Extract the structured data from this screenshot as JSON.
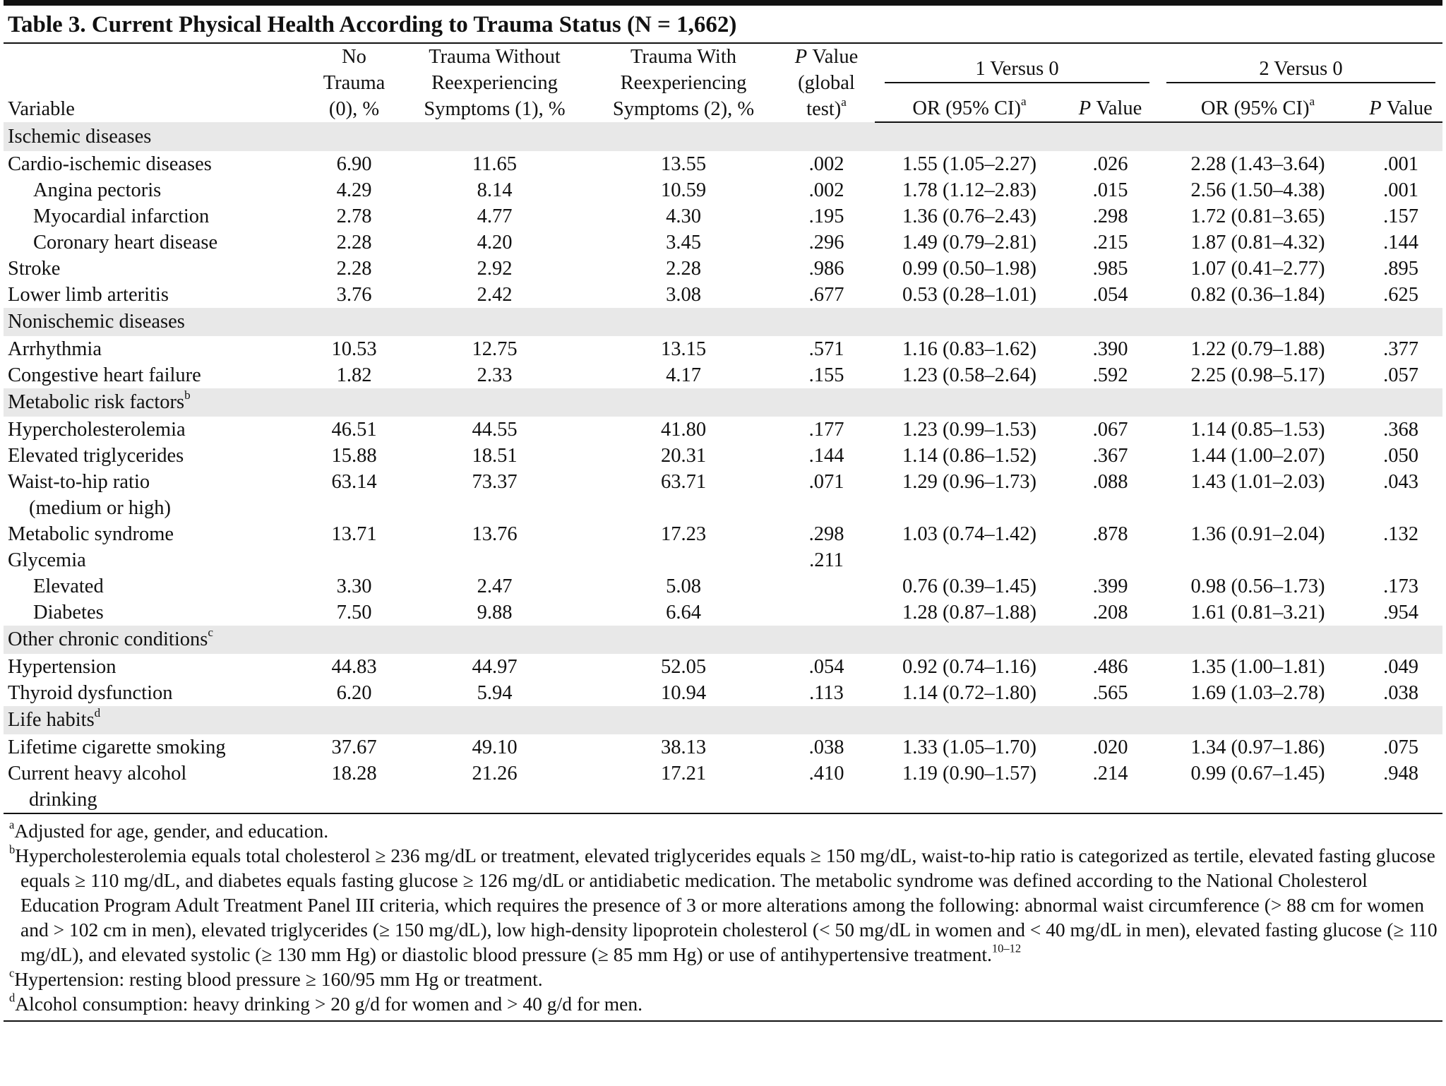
{
  "title": "Table 3. Current Physical Health According to Trauma Status (N = 1,662)",
  "header": {
    "variable": "Variable",
    "columns": [
      {
        "lines": [
          "No",
          "Trauma",
          "(0), %"
        ]
      },
      {
        "lines": [
          "Trauma Without",
          "Reexperiencing",
          "Symptoms (1), %"
        ]
      },
      {
        "lines": [
          "Trauma With",
          "Reexperiencing",
          "Symptoms (2), %"
        ]
      },
      {
        "italic": "P",
        "lines": [
          "Value",
          "(global",
          "test)"
        ],
        "note": "a"
      }
    ],
    "groups": [
      {
        "title": "1 Versus 0",
        "or": "OR (95% CI)",
        "or_note": "a",
        "p_italic": "P",
        "p": "Value"
      },
      {
        "title": "2 Versus 0",
        "or": "OR (95% CI)",
        "or_note": "a",
        "p_italic": "P",
        "p": "Value"
      }
    ]
  },
  "sections": [
    {
      "title": "Ischemic diseases",
      "rows": [
        {
          "lines": [
            "Cardio-ischemic diseases"
          ],
          "values": [
            "6.90",
            "11.65",
            "13.55",
            ".002",
            "1.55 (1.05–2.27)",
            ".026",
            "2.28 (1.43–3.64)",
            ".001"
          ]
        },
        {
          "lines": [
            "Angina pectoris"
          ],
          "indent": true,
          "values": [
            "4.29",
            "8.14",
            "10.59",
            ".002",
            "1.78 (1.12–2.83)",
            ".015",
            "2.56 (1.50–4.38)",
            ".001"
          ]
        },
        {
          "lines": [
            "Myocardial infarction"
          ],
          "indent": true,
          "values": [
            "2.78",
            "4.77",
            "4.30",
            ".195",
            "1.36 (0.76–2.43)",
            ".298",
            "1.72 (0.81–3.65)",
            ".157"
          ]
        },
        {
          "lines": [
            "Coronary heart disease"
          ],
          "indent": true,
          "values": [
            "2.28",
            "4.20",
            "3.45",
            ".296",
            "1.49 (0.79–2.81)",
            ".215",
            "1.87 (0.81–4.32)",
            ".144"
          ]
        },
        {
          "lines": [
            "Stroke"
          ],
          "values": [
            "2.28",
            "2.92",
            "2.28",
            ".986",
            "0.99 (0.50–1.98)",
            ".985",
            "1.07 (0.41–2.77)",
            ".895"
          ]
        },
        {
          "lines": [
            "Lower limb arteritis"
          ],
          "values": [
            "3.76",
            "2.42",
            "3.08",
            ".677",
            "0.53 (0.28–1.01)",
            ".054",
            "0.82 (0.36–1.84)",
            ".625"
          ]
        }
      ]
    },
    {
      "title": "Nonischemic diseases",
      "rows": [
        {
          "lines": [
            "Arrhythmia"
          ],
          "values": [
            "10.53",
            "12.75",
            "13.15",
            ".571",
            "1.16 (0.83–1.62)",
            ".390",
            "1.22 (0.79–1.88)",
            ".377"
          ]
        },
        {
          "lines": [
            "Congestive heart failure"
          ],
          "values": [
            "1.82",
            "2.33",
            "4.17",
            ".155",
            "1.23 (0.58–2.64)",
            ".592",
            "2.25 (0.98–5.17)",
            ".057"
          ]
        }
      ]
    },
    {
      "title": "Metabolic risk factors",
      "note": "b",
      "rows": [
        {
          "lines": [
            "Hypercholesterolemia"
          ],
          "values": [
            "46.51",
            "44.55",
            "41.80",
            ".177",
            "1.23 (0.99–1.53)",
            ".067",
            "1.14 (0.85–1.53)",
            ".368"
          ]
        },
        {
          "lines": [
            "Elevated triglycerides"
          ],
          "values": [
            "15.88",
            "18.51",
            "20.31",
            ".144",
            "1.14 (0.86–1.52)",
            ".367",
            "1.44 (1.00–2.07)",
            ".050"
          ]
        },
        {
          "lines": [
            "Waist-to-hip ratio",
            "(medium or high)"
          ],
          "values": [
            "63.14",
            "73.37",
            "63.71",
            ".071",
            "1.29 (0.96–1.73)",
            ".088",
            "1.43 (1.01–2.03)",
            ".043"
          ]
        },
        {
          "lines": [
            "Metabolic syndrome"
          ],
          "values": [
            "13.71",
            "13.76",
            "17.23",
            ".298",
            "1.03 (0.74–1.42)",
            ".878",
            "1.36 (0.91–2.04)",
            ".132"
          ]
        },
        {
          "lines": [
            "Glycemia"
          ],
          "values": [
            null,
            null,
            null,
            ".211",
            null,
            null,
            null,
            null
          ]
        },
        {
          "lines": [
            "Elevated"
          ],
          "indent": true,
          "values": [
            "3.30",
            "2.47",
            "5.08",
            null,
            "0.76 (0.39–1.45)",
            ".399",
            "0.98 (0.56–1.73)",
            ".173"
          ]
        },
        {
          "lines": [
            "Diabetes"
          ],
          "indent": true,
          "values": [
            "7.50",
            "9.88",
            "6.64",
            null,
            "1.28 (0.87–1.88)",
            ".208",
            "1.61 (0.81–3.21)",
            ".954"
          ]
        }
      ]
    },
    {
      "title": "Other chronic conditions",
      "note": "c",
      "rows": [
        {
          "lines": [
            "Hypertension"
          ],
          "values": [
            "44.83",
            "44.97",
            "52.05",
            ".054",
            "0.92 (0.74–1.16)",
            ".486",
            "1.35 (1.00–1.81)",
            ".049"
          ]
        },
        {
          "lines": [
            "Thyroid dysfunction"
          ],
          "values": [
            "6.20",
            "5.94",
            "10.94",
            ".113",
            "1.14 (0.72–1.80)",
            ".565",
            "1.69 (1.03–2.78)",
            ".038"
          ]
        }
      ]
    },
    {
      "title": "Life habits",
      "note": "d",
      "rows": [
        {
          "lines": [
            "Lifetime cigarette smoking"
          ],
          "values": [
            "37.67",
            "49.10",
            "38.13",
            ".038",
            "1.33 (1.05–1.70)",
            ".020",
            "1.34 (0.97–1.86)",
            ".075"
          ]
        },
        {
          "lines": [
            "Current heavy alcohol",
            "drinking"
          ],
          "values": [
            "18.28",
            "21.26",
            "17.21",
            ".410",
            "1.19 (0.90–1.57)",
            ".214",
            "0.99 (0.67–1.45)",
            ".948"
          ]
        }
      ]
    }
  ],
  "footnotes": [
    {
      "mark": "a",
      "text": "Adjusted for age, gender, and education."
    },
    {
      "mark": "b",
      "text": "Hypercholesterolemia equals total cholesterol ≥ 236 mg/dL or treatment, elevated triglycerides equals ≥ 150 mg/dL, waist-to-hip ratio is categorized as tertile, elevated fasting glucose equals ≥ 110 mg/dL, and diabetes equals fasting glucose ≥ 126 mg/dL or antidiabetic medication. The metabolic syndrome was defined according to the National Cholesterol Education Program Adult Treatment Panel III criteria, which requires the presence of 3 or more alterations among the following: abnormal waist circumference (> 88 cm for women and > 102 cm in men), elevated triglycerides (≥ 150 mg/dL), low high-density lipoprotein cholesterol (< 50 mg/dL in women and < 40 mg/dL in men), elevated fasting glucose (≥ 110 mg/dL), and elevated systolic (≥ 130 mm Hg) or diastolic blood pressure (≥ 85 mm Hg) or use of antihypertensive treatment.",
      "ref": "10–12"
    },
    {
      "mark": "c",
      "text": "Hypertension: resting blood pressure ≥ 160/95 mm Hg or treatment."
    },
    {
      "mark": "d",
      "text": "Alcohol consumption: heavy drinking > 20 g/d for women and > 40 g/d for men."
    }
  ]
}
